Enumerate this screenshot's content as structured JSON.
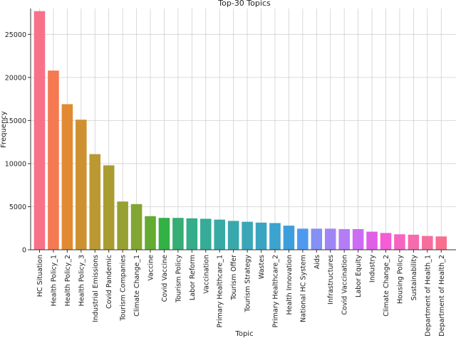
{
  "chart_data": {
    "type": "bar",
    "title": "Top-30 Topics",
    "xlabel": "Topic",
    "ylabel": "Frequency",
    "ylim": [
      0,
      28000
    ],
    "yticks": [
      0,
      5000,
      10000,
      15000,
      20000,
      25000
    ],
    "grid": true,
    "categories": [
      "HC Situation",
      "Health Policy_1",
      "Health Policy_2",
      "Health Policy_3",
      "Industrial Emissions",
      "Covid Pandemic",
      "Tourism Companies",
      "Climate Change_1",
      "Vaccine",
      "Covid Vaccine",
      "Tourism Policy",
      "Labor Reform",
      "Vaccination",
      "Primary Healthcare_1",
      "Tourism Offer",
      "Tourism Strategy",
      "Wastes",
      "Primary Healthcare_2",
      "Health Innovation",
      "National HC System",
      "Aids",
      "Infrastructures",
      "Covid Vaccination",
      "Labor Equity",
      "Industry",
      "Climate Change_2",
      "Housing Policy",
      "Sustainability",
      "Department of Health_1",
      "Department of Health_2"
    ],
    "values": [
      27700,
      20800,
      16900,
      15100,
      11100,
      9800,
      5600,
      5300,
      3900,
      3700,
      3700,
      3650,
      3600,
      3500,
      3350,
      3250,
      3150,
      3100,
      2800,
      2450,
      2450,
      2450,
      2400,
      2400,
      2100,
      1950,
      1800,
      1750,
      1600,
      1550
    ],
    "colors": [
      "#f77189",
      "#f57951",
      "#e28a32",
      "#ce9131",
      "#bb9832",
      "#a99d32",
      "#97a131",
      "#83a532",
      "#64ab31",
      "#32b145",
      "#34ae74",
      "#35ad8a",
      "#36ab98",
      "#37aaa3",
      "#38a8ad",
      "#39a7b7",
      "#3aa5c1",
      "#3ba3cd",
      "#3c9fdb",
      "#5099f0",
      "#8590f4",
      "#a086f4",
      "#b57cf4",
      "#cc6cf4",
      "#df60e6",
      "#f45dd4",
      "#f565c0",
      "#f66bae",
      "#f66e9e",
      "#f7708f"
    ]
  }
}
